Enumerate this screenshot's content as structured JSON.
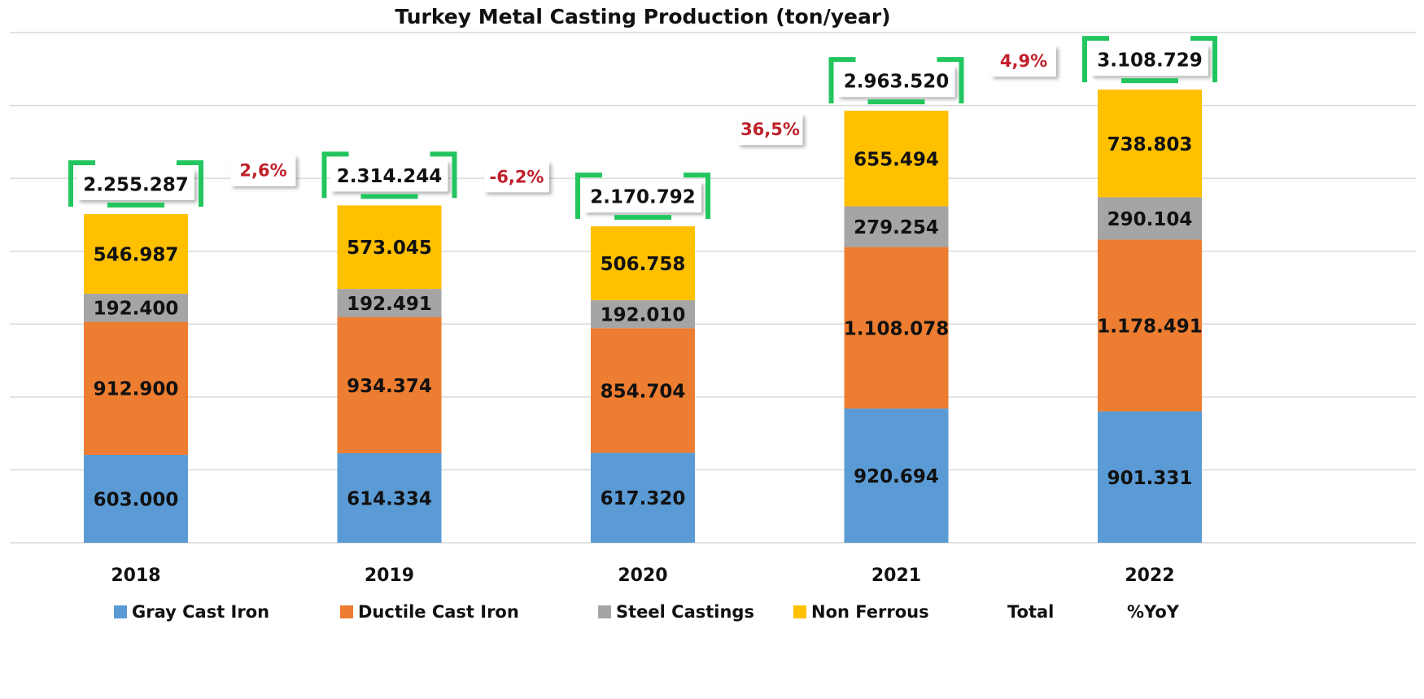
{
  "chart_data": {
    "type": "stacked_bar",
    "title": "Turkey Metal Casting Production (ton/year)",
    "categories": [
      "2018",
      "2019",
      "2020",
      "2021",
      "2022"
    ],
    "series": [
      {
        "name": "Gray Cast Iron",
        "color": "#5b9bd5",
        "values": [
          603000,
          614334,
          617320,
          920694,
          901331
        ],
        "value_labels": [
          "603.000",
          "614.334",
          "617.320",
          "920.694",
          "901.331"
        ]
      },
      {
        "name": "Ductile Cast Iron",
        "color": "#ed7d31",
        "values": [
          912900,
          934374,
          854704,
          1108078,
          1178491
        ],
        "value_labels": [
          "912.900",
          "934.374",
          "854.704",
          "1.108.078",
          "1.178.491"
        ]
      },
      {
        "name": "Steel Castings",
        "color": "#a5a5a5",
        "values": [
          192400,
          192491,
          192010,
          279254,
          290104
        ],
        "value_labels": [
          "192.400",
          "192.491",
          "192.010",
          "279.254",
          "290.104"
        ]
      },
      {
        "name": "Non Ferrous",
        "color": "#ffc000",
        "values": [
          546987,
          573045,
          506758,
          655494,
          738803
        ],
        "value_labels": [
          "546.987",
          "573.045",
          "506.758",
          "655.494",
          "738.803"
        ]
      }
    ],
    "totals": {
      "name": "Total",
      "color": "#22c55e",
      "values": [
        2255287,
        2314244,
        2170792,
        2963520,
        3108729
      ],
      "value_labels": [
        "2.255.287",
        "2.314.244",
        "2.170.792",
        "2.963.520",
        "3.108.729"
      ]
    },
    "yoy": {
      "name": "%YoY",
      "color": "#c0202a",
      "values": [
        null,
        2.6,
        -6.2,
        36.5,
        4.9
      ],
      "value_labels": [
        null,
        "2,6%",
        "-6,2%",
        "36,5%",
        "4,9%"
      ]
    },
    "ylim": [
      0,
      3500000
    ],
    "yticks": [
      0,
      500000,
      1000000,
      1500000,
      2000000,
      2500000,
      3000000,
      3500000
    ],
    "grid": true
  }
}
